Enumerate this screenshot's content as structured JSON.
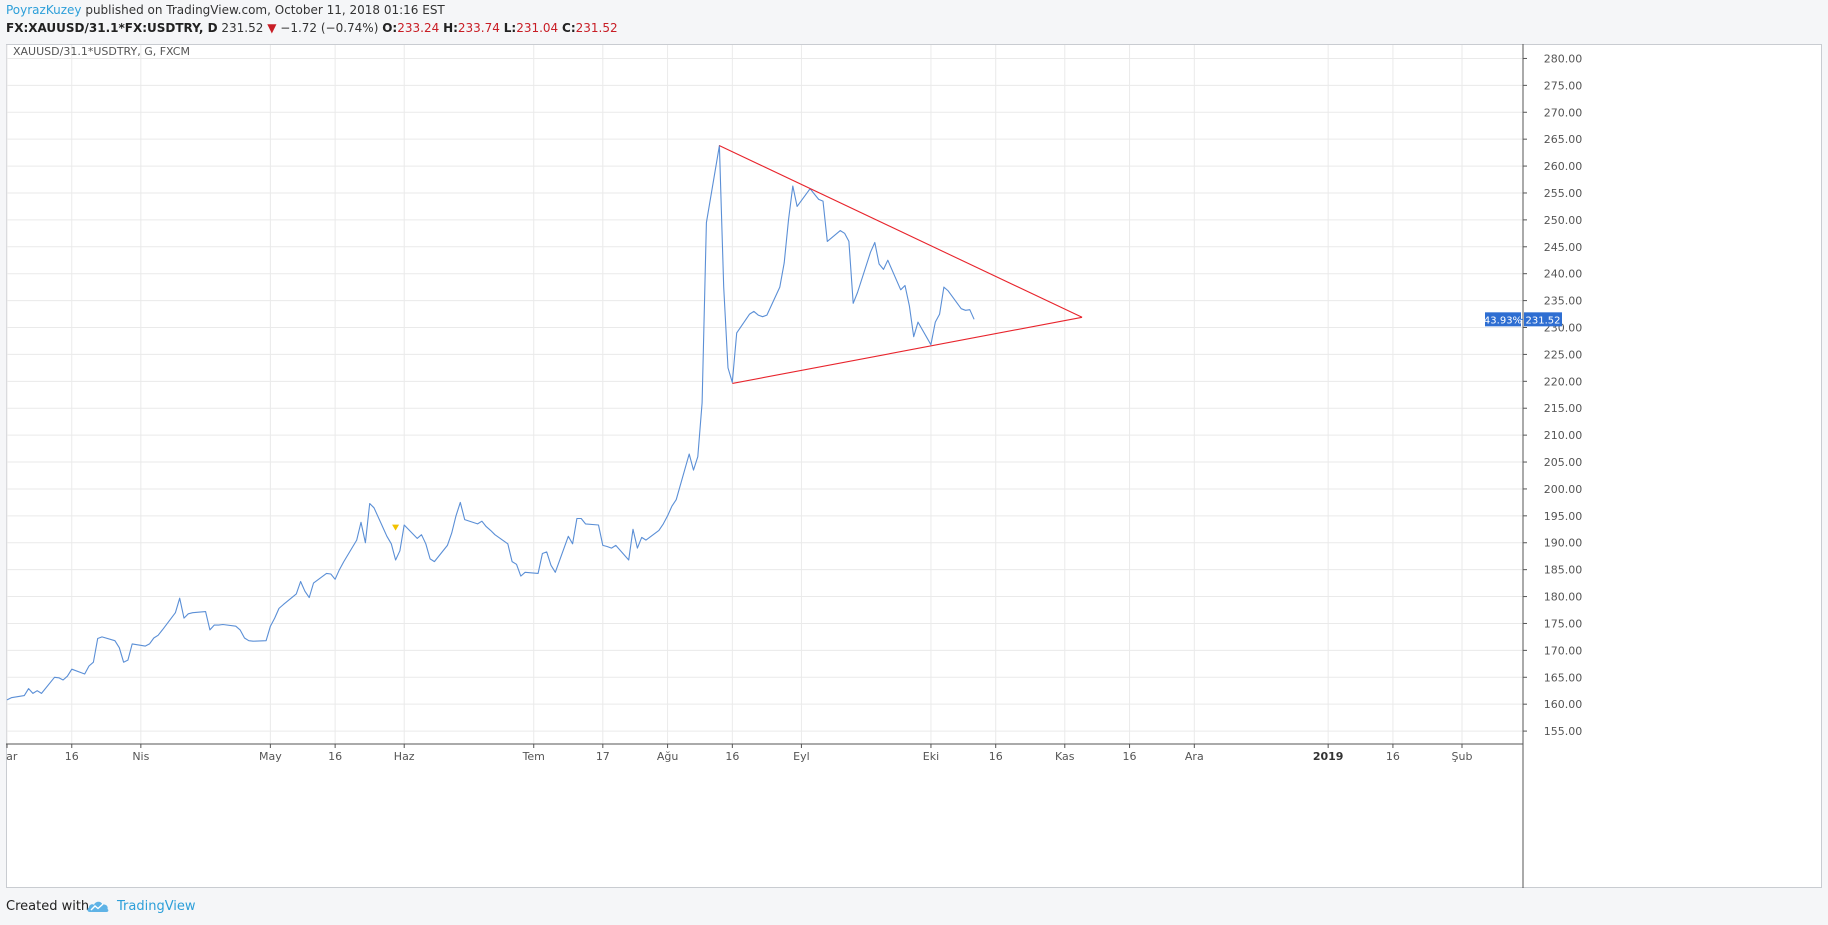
{
  "header": {
    "author": "PoyrazKuzey",
    "published_text": "published on TradingView.com, October 11, 2018 01:16 EST",
    "symbol": "FX:XAUUSD/31.1*FX:USDTRY, D",
    "last": "231.52",
    "change": "−1.72 (−0.74%)",
    "o_label": "O:",
    "o_value": "233.24",
    "h_label": "H:",
    "h_value": "233.74",
    "l_label": "L:",
    "l_value": "231.04",
    "c_label": "C:",
    "c_value": "231.52"
  },
  "footer": {
    "created_with": "Created with",
    "brand": "TradingView",
    "brand_icon": "tradingview-cloud-icon"
  },
  "colors": {
    "line": "#5b8fd6",
    "trendline": "#e8242c",
    "price_label_bg": "#2e6ed2",
    "grid": "#eaeaea",
    "marker": "#f2c200"
  },
  "chart_data": {
    "type": "line",
    "legend": "XAUUSD/31.1*USDTRY, G, FXCM",
    "y_ticks": [
      "155.00",
      "160.00",
      "165.00",
      "170.00",
      "175.00",
      "180.00",
      "185.00",
      "190.00",
      "195.00",
      "200.00",
      "205.00",
      "210.00",
      "215.00",
      "220.00",
      "225.00",
      "230.00",
      "235.00",
      "240.00",
      "245.00",
      "250.00",
      "255.00",
      "260.00",
      "265.00",
      "270.00",
      "275.00",
      "280.00"
    ],
    "ylim": [
      152.6,
      282.5
    ],
    "x_ticks": [
      {
        "label": "Mar",
        "date": "2018-03-01"
      },
      {
        "label": "16",
        "date": "2018-03-16"
      },
      {
        "label": "Nis",
        "date": "2018-04-01"
      },
      {
        "label": "May",
        "date": "2018-05-01"
      },
      {
        "label": "16",
        "date": "2018-05-16"
      },
      {
        "label": "Haz",
        "date": "2018-06-01"
      },
      {
        "label": "Tem",
        "date": "2018-07-01"
      },
      {
        "label": "17",
        "date": "2018-07-17"
      },
      {
        "label": "Ağu",
        "date": "2018-08-01"
      },
      {
        "label": "16",
        "date": "2018-08-16"
      },
      {
        "label": "Eyl",
        "date": "2018-09-01"
      },
      {
        "label": "Eki",
        "date": "2018-10-01"
      },
      {
        "label": "16",
        "date": "2018-10-16"
      },
      {
        "label": "Kas",
        "date": "2018-11-01"
      },
      {
        "label": "16",
        "date": "2018-11-16"
      },
      {
        "label": "Ara",
        "date": "2018-12-01"
      },
      {
        "label": "2019",
        "date": "2019-01-01",
        "bold": true
      },
      {
        "label": "16",
        "date": "2019-01-16"
      },
      {
        "label": "Şub",
        "date": "2019-02-01"
      }
    ],
    "series": [
      {
        "points": [
          [
            "2018-03-01",
            160.8
          ],
          [
            "2018-03-02",
            161.2
          ],
          [
            "2018-03-05",
            161.6
          ],
          [
            "2018-03-06",
            162.9
          ],
          [
            "2018-03-07",
            162.0
          ],
          [
            "2018-03-08",
            162.5
          ],
          [
            "2018-03-09",
            162.0
          ],
          [
            "2018-03-12",
            165.0
          ],
          [
            "2018-03-13",
            164.9
          ],
          [
            "2018-03-14",
            164.5
          ],
          [
            "2018-03-15",
            165.2
          ],
          [
            "2018-03-16",
            166.5
          ],
          [
            "2018-03-19",
            165.6
          ],
          [
            "2018-03-20",
            167.1
          ],
          [
            "2018-03-21",
            167.8
          ],
          [
            "2018-03-22",
            172.2
          ],
          [
            "2018-03-23",
            172.5
          ],
          [
            "2018-03-26",
            171.8
          ],
          [
            "2018-03-27",
            170.5
          ],
          [
            "2018-03-28",
            167.8
          ],
          [
            "2018-03-29",
            168.2
          ],
          [
            "2018-03-30",
            171.2
          ],
          [
            "2018-04-02",
            170.8
          ],
          [
            "2018-04-03",
            171.2
          ],
          [
            "2018-04-04",
            172.3
          ],
          [
            "2018-04-05",
            172.8
          ],
          [
            "2018-04-06",
            173.8
          ],
          [
            "2018-04-09",
            177.0
          ],
          [
            "2018-04-10",
            179.7
          ],
          [
            "2018-04-11",
            176.0
          ],
          [
            "2018-04-12",
            176.8
          ],
          [
            "2018-04-13",
            177.0
          ],
          [
            "2018-04-16",
            177.2
          ],
          [
            "2018-04-17",
            173.8
          ],
          [
            "2018-04-18",
            174.7
          ],
          [
            "2018-04-19",
            174.7
          ],
          [
            "2018-04-20",
            174.8
          ],
          [
            "2018-04-23",
            174.5
          ],
          [
            "2018-04-24",
            173.8
          ],
          [
            "2018-04-25",
            172.3
          ],
          [
            "2018-04-26",
            171.8
          ],
          [
            "2018-04-27",
            171.7
          ],
          [
            "2018-04-30",
            171.8
          ],
          [
            "2018-05-01",
            174.5
          ],
          [
            "2018-05-02",
            176.0
          ],
          [
            "2018-05-03",
            177.8
          ],
          [
            "2018-05-04",
            178.5
          ],
          [
            "2018-05-07",
            180.5
          ],
          [
            "2018-05-08",
            182.8
          ],
          [
            "2018-05-09",
            181.0
          ],
          [
            "2018-05-10",
            179.8
          ],
          [
            "2018-05-11",
            182.5
          ],
          [
            "2018-05-14",
            184.3
          ],
          [
            "2018-05-15",
            184.2
          ],
          [
            "2018-05-16",
            183.2
          ],
          [
            "2018-05-17",
            185.0
          ],
          [
            "2018-05-18",
            186.5
          ],
          [
            "2018-05-21",
            190.5
          ],
          [
            "2018-05-22",
            193.8
          ],
          [
            "2018-05-23",
            190.0
          ],
          [
            "2018-05-24",
            197.3
          ],
          [
            "2018-05-25",
            196.5
          ],
          [
            "2018-05-28",
            191.2
          ],
          [
            "2018-05-29",
            189.8
          ],
          [
            "2018-05-30",
            186.8
          ],
          [
            "2018-05-31",
            188.5
          ],
          [
            "2018-06-01",
            193.3
          ],
          [
            "2018-06-04",
            190.8
          ],
          [
            "2018-06-05",
            191.5
          ],
          [
            "2018-06-06",
            189.8
          ],
          [
            "2018-06-07",
            187.0
          ],
          [
            "2018-06-08",
            186.5
          ],
          [
            "2018-06-11",
            189.5
          ],
          [
            "2018-06-12",
            191.8
          ],
          [
            "2018-06-13",
            195.0
          ],
          [
            "2018-06-14",
            197.5
          ],
          [
            "2018-06-15",
            194.3
          ],
          [
            "2018-06-18",
            193.5
          ],
          [
            "2018-06-19",
            194.0
          ],
          [
            "2018-06-20",
            193.0
          ],
          [
            "2018-06-21",
            192.3
          ],
          [
            "2018-06-22",
            191.5
          ],
          [
            "2018-06-25",
            189.8
          ],
          [
            "2018-06-26",
            186.5
          ],
          [
            "2018-06-27",
            186.0
          ],
          [
            "2018-06-28",
            183.8
          ],
          [
            "2018-06-29",
            184.5
          ],
          [
            "2018-07-02",
            184.3
          ],
          [
            "2018-07-03",
            188.0
          ],
          [
            "2018-07-04",
            188.3
          ],
          [
            "2018-07-05",
            185.8
          ],
          [
            "2018-07-06",
            184.5
          ],
          [
            "2018-07-09",
            191.2
          ],
          [
            "2018-07-10",
            189.8
          ],
          [
            "2018-07-11",
            194.5
          ],
          [
            "2018-07-12",
            194.5
          ],
          [
            "2018-07-13",
            193.5
          ],
          [
            "2018-07-16",
            193.3
          ],
          [
            "2018-07-17",
            189.5
          ],
          [
            "2018-07-18",
            189.3
          ],
          [
            "2018-07-19",
            189.0
          ],
          [
            "2018-07-20",
            189.5
          ],
          [
            "2018-07-23",
            186.8
          ],
          [
            "2018-07-24",
            192.5
          ],
          [
            "2018-07-25",
            189.0
          ],
          [
            "2018-07-26",
            191.0
          ],
          [
            "2018-07-27",
            190.5
          ],
          [
            "2018-07-30",
            192.3
          ],
          [
            "2018-07-31",
            193.5
          ],
          [
            "2018-08-01",
            195.0
          ],
          [
            "2018-08-02",
            196.8
          ],
          [
            "2018-08-03",
            198.0
          ],
          [
            "2018-08-06",
            206.5
          ],
          [
            "2018-08-07",
            203.5
          ],
          [
            "2018-08-08",
            206.0
          ],
          [
            "2018-08-09",
            216.0
          ],
          [
            "2018-08-10",
            249.5
          ],
          [
            "2018-08-13",
            263.8
          ],
          [
            "2018-08-14",
            237.5
          ],
          [
            "2018-08-15",
            222.5
          ],
          [
            "2018-08-16",
            219.8
          ],
          [
            "2018-08-17",
            229.0
          ],
          [
            "2018-08-20",
            232.5
          ],
          [
            "2018-08-21",
            233.0
          ],
          [
            "2018-08-22",
            232.3
          ],
          [
            "2018-08-23",
            232.0
          ],
          [
            "2018-08-24",
            232.3
          ],
          [
            "2018-08-27",
            237.5
          ],
          [
            "2018-08-28",
            242.0
          ],
          [
            "2018-08-29",
            250.0
          ],
          [
            "2018-08-30",
            256.3
          ],
          [
            "2018-08-31",
            252.5
          ],
          [
            "2018-09-03",
            255.8
          ],
          [
            "2018-09-04",
            254.8
          ],
          [
            "2018-09-05",
            253.8
          ],
          [
            "2018-09-06",
            253.5
          ],
          [
            "2018-09-07",
            246.0
          ],
          [
            "2018-09-10",
            248.0
          ],
          [
            "2018-09-11",
            247.5
          ],
          [
            "2018-09-12",
            246.0
          ],
          [
            "2018-09-13",
            234.5
          ],
          [
            "2018-09-14",
            236.5
          ],
          [
            "2018-09-17",
            244.0
          ],
          [
            "2018-09-18",
            245.8
          ],
          [
            "2018-09-19",
            241.8
          ],
          [
            "2018-09-20",
            240.8
          ],
          [
            "2018-09-21",
            242.5
          ],
          [
            "2018-09-24",
            237.0
          ],
          [
            "2018-09-25",
            237.8
          ],
          [
            "2018-09-26",
            234.0
          ],
          [
            "2018-09-27",
            228.3
          ],
          [
            "2018-09-28",
            231.0
          ],
          [
            "2018-10-01",
            226.8
          ],
          [
            "2018-10-02",
            231.0
          ],
          [
            "2018-10-03",
            232.5
          ],
          [
            "2018-10-04",
            237.5
          ],
          [
            "2018-10-05",
            236.8
          ],
          [
            "2018-10-08",
            233.5
          ],
          [
            "2018-10-09",
            233.2
          ],
          [
            "2018-10-10",
            233.3
          ],
          [
            "2018-10-11",
            231.52
          ]
        ]
      }
    ],
    "trendlines": [
      {
        "from": [
          "2018-08-13",
          263.8
        ],
        "to": [
          "2018-11-05",
          231.9
        ]
      },
      {
        "from": [
          "2018-08-16",
          219.6
        ],
        "to": [
          "2018-11-05",
          231.9
        ]
      }
    ],
    "marker": {
      "date": "2018-05-30",
      "value": 192.8
    },
    "last_value": {
      "label": "231.52",
      "percent": "43.93%",
      "value": 231.52
    }
  }
}
